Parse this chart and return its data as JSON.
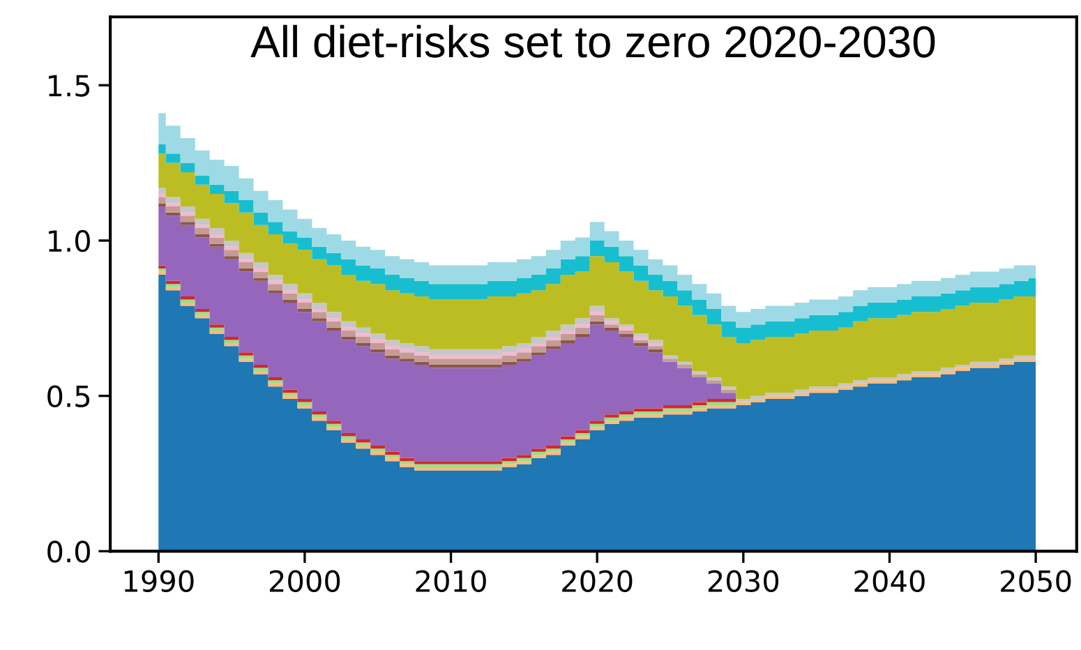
{
  "chart_data": {
    "type": "area",
    "stacked": true,
    "title": "All diet-risks set to zero 2020-2030",
    "x": [
      1990,
      1991,
      1992,
      1993,
      1994,
      1995,
      1996,
      1997,
      1998,
      1999,
      2000,
      2001,
      2002,
      2003,
      2004,
      2005,
      2006,
      2007,
      2008,
      2009,
      2010,
      2011,
      2012,
      2013,
      2014,
      2015,
      2016,
      2017,
      2018,
      2019,
      2020,
      2021,
      2022,
      2023,
      2024,
      2025,
      2026,
      2027,
      2028,
      2029,
      2030,
      2031,
      2032,
      2033,
      2034,
      2035,
      2036,
      2037,
      2038,
      2039,
      2040,
      2041,
      2042,
      2043,
      2044,
      2045,
      2046,
      2047,
      2048,
      2049,
      2050
    ],
    "series": [
      {
        "color": "#1f77b4",
        "values": [
          0.89,
          0.84,
          0.79,
          0.75,
          0.7,
          0.66,
          0.61,
          0.57,
          0.53,
          0.49,
          0.46,
          0.42,
          0.39,
          0.35,
          0.33,
          0.31,
          0.29,
          0.27,
          0.26,
          0.26,
          0.26,
          0.26,
          0.26,
          0.26,
          0.27,
          0.28,
          0.3,
          0.31,
          0.34,
          0.36,
          0.39,
          0.41,
          0.42,
          0.43,
          0.43,
          0.44,
          0.44,
          0.45,
          0.46,
          0.46,
          0.47,
          0.48,
          0.49,
          0.49,
          0.5,
          0.51,
          0.51,
          0.52,
          0.53,
          0.54,
          0.54,
          0.55,
          0.56,
          0.56,
          0.57,
          0.58,
          0.59,
          0.59,
          0.6,
          0.61,
          0.61
        ]
      },
      {
        "color": "#ffbb78",
        "values": [
          0.01,
          0.01,
          0.01,
          0.01,
          0.01,
          0.01,
          0.01,
          0.01,
          0.01,
          0.01,
          0.01,
          0.01,
          0.01,
          0.01,
          0.01,
          0.01,
          0.01,
          0.01,
          0.01,
          0.01,
          0.01,
          0.01,
          0.01,
          0.01,
          0.01,
          0.01,
          0.01,
          0.01,
          0.01,
          0.01,
          0.01,
          0.01,
          0.01,
          0.01,
          0.01,
          0.01,
          0.01,
          0.01,
          0.01,
          0.01,
          0.01,
          0.01,
          0.01,
          0.01,
          0.01,
          0.01,
          0.01,
          0.01,
          0.01,
          0.01,
          0.01,
          0.01,
          0.01,
          0.01,
          0.01,
          0.01,
          0.01,
          0.01,
          0.01,
          0.01,
          0.01
        ]
      },
      {
        "color": "#98df8a",
        "values": [
          0.01,
          0.01,
          0.01,
          0.01,
          0.01,
          0.01,
          0.01,
          0.01,
          0.01,
          0.01,
          0.01,
          0.01,
          0.01,
          0.01,
          0.01,
          0.01,
          0.01,
          0.01,
          0.01,
          0.01,
          0.01,
          0.01,
          0.01,
          0.01,
          0.01,
          0.01,
          0.01,
          0.01,
          0.01,
          0.01,
          0.01,
          0.01,
          0.01,
          0.01,
          0.01,
          0.01,
          0.01,
          0.01,
          0.01,
          0.01,
          0,
          0,
          0,
          0,
          0,
          0,
          0,
          0,
          0,
          0,
          0,
          0,
          0,
          0,
          0,
          0,
          0,
          0,
          0,
          0,
          0
        ]
      },
      {
        "color": "#d62728",
        "values": [
          0.01,
          0.01,
          0.01,
          0.01,
          0.01,
          0.01,
          0.01,
          0.01,
          0.01,
          0.01,
          0.01,
          0.01,
          0.01,
          0.01,
          0.01,
          0.01,
          0.01,
          0.01,
          0.01,
          0.01,
          0.01,
          0.01,
          0.01,
          0.01,
          0.01,
          0.01,
          0.01,
          0.01,
          0.01,
          0.01,
          0.01,
          0.01,
          0.01,
          0.01,
          0.01,
          0.01,
          0.01,
          0.01,
          0.01,
          0.01,
          0,
          0,
          0,
          0,
          0,
          0,
          0,
          0,
          0,
          0,
          0,
          0,
          0,
          0,
          0,
          0,
          0,
          0,
          0,
          0,
          0
        ]
      },
      {
        "color": "#9467bd",
        "values": [
          0.19,
          0.21,
          0.23,
          0.23,
          0.25,
          0.25,
          0.26,
          0.27,
          0.27,
          0.28,
          0.28,
          0.29,
          0.29,
          0.3,
          0.3,
          0.3,
          0.3,
          0.31,
          0.31,
          0.3,
          0.3,
          0.3,
          0.3,
          0.3,
          0.3,
          0.3,
          0.3,
          0.31,
          0.3,
          0.3,
          0.31,
          0.27,
          0.24,
          0.2,
          0.18,
          0.14,
          0.12,
          0.08,
          0.05,
          0.02,
          0,
          0,
          0,
          0,
          0,
          0,
          0,
          0,
          0,
          0,
          0,
          0,
          0,
          0,
          0,
          0,
          0,
          0,
          0,
          0,
          0
        ]
      },
      {
        "color": "#8c564b",
        "values": [
          0.01,
          0.01,
          0.01,
          0.01,
          0.01,
          0.01,
          0.01,
          0.01,
          0.01,
          0.01,
          0.01,
          0.01,
          0.01,
          0.01,
          0.01,
          0.01,
          0.01,
          0.01,
          0.01,
          0.01,
          0.01,
          0.01,
          0.01,
          0.01,
          0.01,
          0.01,
          0.01,
          0.01,
          0.01,
          0.01,
          0.01,
          0.01,
          0.01,
          0.01,
          0.01,
          0,
          0,
          0,
          0,
          0,
          0,
          0,
          0,
          0,
          0,
          0,
          0,
          0,
          0,
          0,
          0,
          0,
          0,
          0,
          0,
          0,
          0,
          0,
          0,
          0,
          0
        ]
      },
      {
        "color": "#c49c94",
        "values": [
          0.02,
          0.02,
          0.02,
          0.02,
          0.02,
          0.02,
          0.02,
          0.02,
          0.02,
          0.02,
          0.02,
          0.02,
          0.02,
          0.02,
          0.02,
          0.02,
          0.02,
          0.02,
          0.02,
          0.02,
          0.02,
          0.02,
          0.02,
          0.02,
          0.02,
          0.02,
          0.02,
          0.02,
          0.02,
          0.02,
          0.02,
          0.01,
          0.01,
          0.01,
          0.01,
          0.01,
          0.01,
          0.01,
          0.01,
          0.01,
          0,
          0,
          0,
          0,
          0,
          0,
          0,
          0,
          0,
          0,
          0,
          0,
          0,
          0,
          0,
          0,
          0,
          0,
          0,
          0,
          0
        ]
      },
      {
        "color": "#f7b6d2",
        "values": [
          0.01,
          0.01,
          0.01,
          0.01,
          0.01,
          0.01,
          0.01,
          0.01,
          0.01,
          0.01,
          0.01,
          0.01,
          0.01,
          0.01,
          0.01,
          0.01,
          0.01,
          0.01,
          0.01,
          0.01,
          0.01,
          0.01,
          0.01,
          0.01,
          0.01,
          0.01,
          0.01,
          0.01,
          0.01,
          0.01,
          0.01,
          0.01,
          0.01,
          0.01,
          0.01,
          0,
          0,
          0,
          0,
          0,
          0,
          0,
          0,
          0,
          0,
          0,
          0,
          0,
          0,
          0,
          0,
          0,
          0,
          0,
          0,
          0,
          0,
          0,
          0,
          0,
          0
        ]
      },
      {
        "color": "#c7c7c7",
        "values": [
          0.02,
          0.02,
          0.02,
          0.02,
          0.02,
          0.02,
          0.02,
          0.02,
          0.02,
          0.02,
          0.02,
          0.02,
          0.02,
          0.02,
          0.02,
          0.02,
          0.02,
          0.02,
          0.02,
          0.02,
          0.02,
          0.02,
          0.02,
          0.02,
          0.02,
          0.02,
          0.02,
          0.02,
          0.02,
          0.02,
          0.02,
          0.01,
          0.01,
          0.01,
          0.01,
          0.01,
          0.01,
          0.01,
          0.01,
          0.01,
          0.01,
          0.01,
          0.01,
          0.01,
          0.01,
          0.01,
          0.01,
          0.01,
          0.01,
          0.01,
          0.01,
          0.01,
          0.01,
          0.01,
          0.01,
          0.01,
          0.01,
          0.01,
          0.01,
          0.01,
          0.01
        ]
      },
      {
        "color": "#bcbd22",
        "values": [
          0.11,
          0.11,
          0.11,
          0.11,
          0.11,
          0.12,
          0.13,
          0.12,
          0.13,
          0.13,
          0.14,
          0.14,
          0.15,
          0.15,
          0.15,
          0.16,
          0.16,
          0.16,
          0.16,
          0.16,
          0.16,
          0.16,
          0.16,
          0.17,
          0.16,
          0.16,
          0.15,
          0.15,
          0.16,
          0.15,
          0.16,
          0.18,
          0.17,
          0.17,
          0.16,
          0.19,
          0.18,
          0.18,
          0.17,
          0.16,
          0.18,
          0.18,
          0.18,
          0.18,
          0.18,
          0.18,
          0.18,
          0.18,
          0.19,
          0.19,
          0.19,
          0.19,
          0.19,
          0.19,
          0.19,
          0.19,
          0.19,
          0.19,
          0.19,
          0.19,
          0.19
        ]
      },
      {
        "color": "#17becf",
        "values": [
          0.03,
          0.03,
          0.03,
          0.03,
          0.03,
          0.04,
          0.04,
          0.04,
          0.04,
          0.04,
          0.04,
          0.04,
          0.04,
          0.05,
          0.05,
          0.05,
          0.05,
          0.05,
          0.05,
          0.05,
          0.05,
          0.05,
          0.05,
          0.05,
          0.05,
          0.05,
          0.05,
          0.05,
          0.05,
          0.05,
          0.05,
          0.05,
          0.05,
          0.05,
          0.05,
          0.05,
          0.05,
          0.05,
          0.05,
          0.05,
          0.05,
          0.05,
          0.05,
          0.05,
          0.05,
          0.05,
          0.05,
          0.05,
          0.05,
          0.05,
          0.05,
          0.05,
          0.05,
          0.05,
          0.05,
          0.05,
          0.05,
          0.05,
          0.05,
          0.05,
          0.06
        ]
      },
      {
        "color": "#9edae5",
        "values": [
          0.1,
          0.09,
          0.08,
          0.08,
          0.08,
          0.08,
          0.07,
          0.07,
          0.07,
          0.07,
          0.06,
          0.06,
          0.06,
          0.06,
          0.06,
          0.06,
          0.06,
          0.06,
          0.06,
          0.06,
          0.06,
          0.06,
          0.06,
          0.06,
          0.06,
          0.06,
          0.06,
          0.06,
          0.06,
          0.06,
          0.06,
          0.05,
          0.05,
          0.05,
          0.05,
          0.05,
          0.05,
          0.05,
          0.05,
          0.05,
          0.05,
          0.05,
          0.05,
          0.05,
          0.05,
          0.05,
          0.05,
          0.05,
          0.05,
          0.05,
          0.05,
          0.05,
          0.05,
          0.05,
          0.05,
          0.05,
          0.05,
          0.05,
          0.05,
          0.05,
          0.04
        ]
      }
    ],
    "xlim": [
      1986.7,
      2052.8
    ],
    "ylim": [
      0,
      1.72
    ],
    "xticks": [
      1990,
      2000,
      2010,
      2020,
      2030,
      2040,
      2050
    ],
    "yticks": [
      {
        "value": 0,
        "label": "0.0"
      },
      {
        "value": 0.5,
        "label": "0.5"
      },
      {
        "value": 1,
        "label": "1.0"
      },
      {
        "value": 1.5,
        "label": "1.5"
      }
    ],
    "grid": false
  }
}
